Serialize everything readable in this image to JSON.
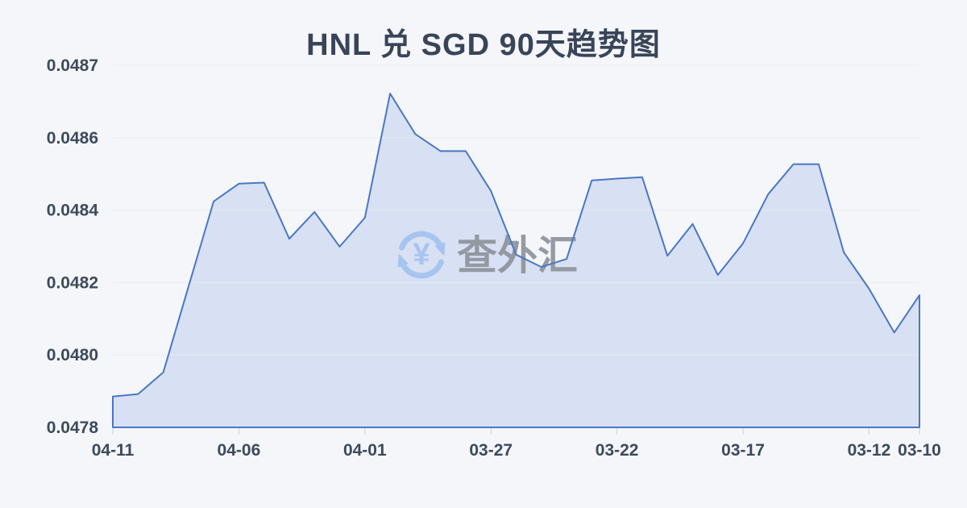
{
  "chart_data": {
    "type": "area",
    "title": "HNL 兑 SGD 90天趋势图",
    "x": [
      "04-11",
      "04-10",
      "04-09",
      "04-08",
      "04-07",
      "04-06",
      "04-05",
      "04-04",
      "04-03",
      "04-02",
      "04-01",
      "03-31",
      "03-30",
      "03-29",
      "03-28",
      "03-27",
      "03-26",
      "03-25",
      "03-24",
      "03-23",
      "03-22",
      "03-21",
      "03-20",
      "03-19",
      "03-18",
      "03-17",
      "03-16",
      "03-15",
      "03-14",
      "03-13",
      "03-12",
      "03-11",
      "03-10"
    ],
    "values": [
      0.047885,
      0.047892,
      0.047952,
      0.048188,
      0.048424,
      0.048473,
      0.048476,
      0.048321,
      0.048395,
      0.048299,
      0.048379,
      0.048661,
      0.048605,
      0.048563,
      0.048563,
      0.048453,
      0.048277,
      0.048243,
      0.048265,
      0.048482,
      0.048487,
      0.048491,
      0.048274,
      0.048362,
      0.048221,
      0.048308,
      0.048444,
      0.048527,
      0.048527,
      0.048283,
      0.048183,
      0.048062,
      0.048165
    ],
    "x_tick_indices": [
      0,
      5,
      10,
      15,
      20,
      25,
      30,
      32
    ],
    "x_tick_labels": [
      "04-11",
      "04-06",
      "04-01",
      "03-27",
      "03-22",
      "03-17",
      "03-12",
      "03-10"
    ],
    "y_axis": {
      "tick_values": [
        0.0478,
        0.048,
        0.0482,
        0.0484,
        0.0486,
        0.0487
      ],
      "tick_labels": [
        "0.0478",
        "0.0480",
        "0.0482",
        "0.0484",
        "0.0486",
        "0.0487"
      ]
    },
    "xlabel": "",
    "ylabel": "",
    "grid": true,
    "legend": false
  },
  "watermark": {
    "text": "查外汇",
    "icon": "yen-exchange-icon",
    "icon_symbol": "¥"
  },
  "colors": {
    "background": "#f4f6f9",
    "title_text": "#394459",
    "axis_text": "#3d4a5c",
    "line": "#4a77c4",
    "area_fill": "#d8e0f3",
    "gridline": "#e8ebf1",
    "tick": "#c9d0dc",
    "watermark_text": "#8e939c",
    "watermark_icon": "#a6c4ef"
  }
}
